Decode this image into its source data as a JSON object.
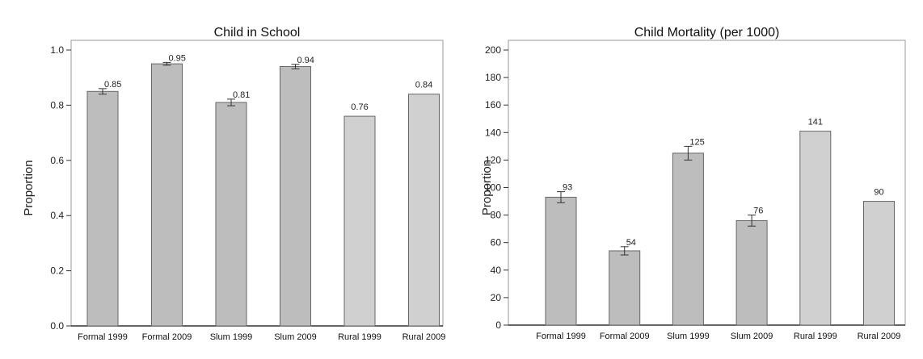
{
  "chart_data": [
    {
      "type": "bar",
      "title": "Child in School",
      "xlabel": "",
      "ylabel": "Proportion",
      "ylim": [
        0,
        1.0
      ],
      "yticks": [
        "0.0",
        "0.2",
        "0.4",
        "0.6",
        "0.8",
        "1.0"
      ],
      "categories": [
        "Formal 1999",
        "Formal 2009",
        "Slum 1999",
        "Slum 2009",
        "Rural 1999",
        "Rural 2009"
      ],
      "values": [
        0.85,
        0.95,
        0.81,
        0.94,
        0.76,
        0.84
      ],
      "data_labels": [
        "0.85",
        "0.95",
        "0.81",
        "0.94",
        "0.76",
        "0.84"
      ],
      "error": [
        0.01,
        0.005,
        0.012,
        0.008,
        null,
        null
      ],
      "bar_colors": [
        "#bdbdbd",
        "#bdbdbd",
        "#bdbdbd",
        "#bdbdbd",
        "#d0d0d0",
        "#d0d0d0"
      ],
      "grid": false
    },
    {
      "type": "bar",
      "title": "Child Mortality (per 1000)",
      "xlabel": "",
      "ylabel": "Proportion",
      "ylim": [
        0,
        200
      ],
      "yticks": [
        "0",
        "20",
        "40",
        "60",
        "80",
        "100",
        "120",
        "140",
        "160",
        "180",
        "200"
      ],
      "categories": [
        "Formal 1999",
        "Formal 2009",
        "Slum 1999",
        "Slum 2009",
        "Rural 1999",
        "Rural 2009"
      ],
      "values": [
        93,
        54,
        125,
        76,
        141,
        90
      ],
      "data_labels": [
        "93",
        "54",
        "125",
        "76",
        "141",
        "90"
      ],
      "error": [
        4,
        3,
        5,
        4,
        null,
        null
      ],
      "bar_colors": [
        "#bdbdbd",
        "#bdbdbd",
        "#bdbdbd",
        "#bdbdbd",
        "#d0d0d0",
        "#d0d0d0"
      ],
      "grid": false
    }
  ]
}
